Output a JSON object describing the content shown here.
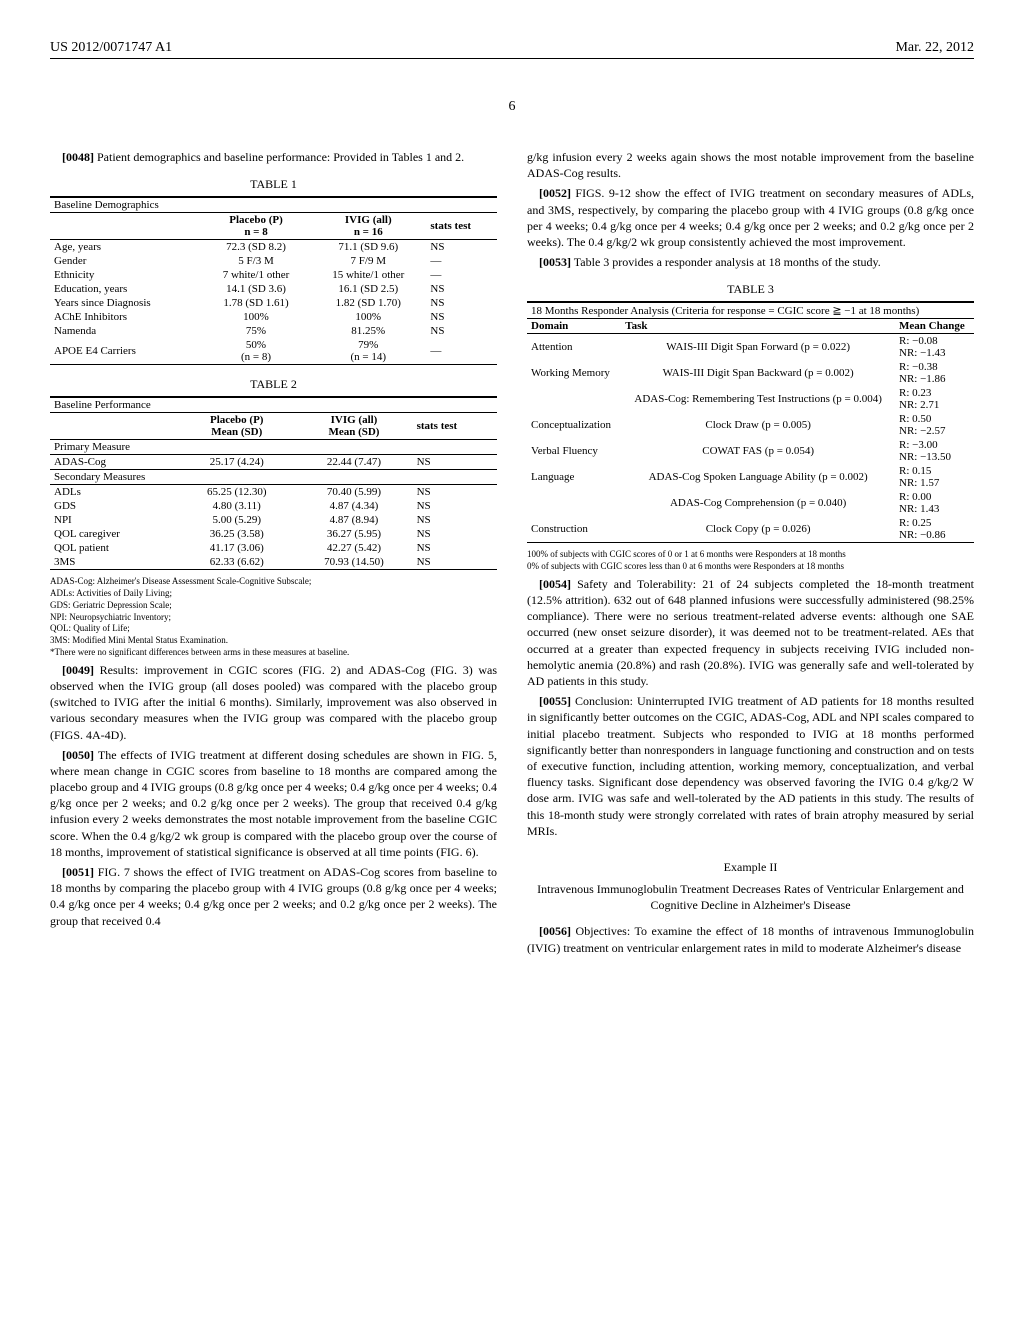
{
  "header": {
    "pub_id": "US 2012/0071747 A1",
    "pub_date": "Mar. 22, 2012",
    "page_number": "6"
  },
  "left": {
    "p48_num": "[0048]",
    "p48": "Patient demographics and baseline performance: Provided in Tables 1 and 2.",
    "table1": {
      "title": "TABLE 1",
      "caption": "Baseline Demographics",
      "col_labels": [
        "",
        "Placebo (P)\nn = 8",
        "IVIG (all)\nn = 16",
        "stats test"
      ],
      "rows": [
        [
          "Age, years",
          "72.3 (SD 8.2)",
          "71.1 (SD 9.6)",
          "NS"
        ],
        [
          "Gender",
          "5 F/3 M",
          "7 F/9 M",
          "—"
        ],
        [
          "Ethnicity",
          "7 white/1 other",
          "15 white/1 other",
          "—"
        ],
        [
          "Education, years",
          "14.1 (SD 3.6)",
          "16.1 (SD 2.5)",
          "NS"
        ],
        [
          "Years since Diagnosis",
          "1.78 (SD 1.61)",
          "1.82 (SD 1.70)",
          "NS"
        ],
        [
          "AChE Inhibitors",
          "100%",
          "100%",
          "NS"
        ],
        [
          "Namenda",
          "75%",
          "81.25%",
          "NS"
        ],
        [
          "APOE E4 Carriers",
          "50%\n(n = 8)",
          "79%\n(n = 14)",
          "—"
        ]
      ]
    },
    "table2": {
      "title": "TABLE 2",
      "caption": "Baseline Performance",
      "col_labels": [
        "",
        "Placebo (P)\nMean (SD)",
        "IVIG (all)\nMean (SD)",
        "stats test"
      ],
      "primary_label": "Primary Measure",
      "primary_rows": [
        [
          "ADAS-Cog",
          "25.17 (4.24)",
          "22.44 (7.47)",
          "NS"
        ]
      ],
      "secondary_label": "Secondary Measures",
      "secondary_rows": [
        [
          "ADLs",
          "65.25 (12.30)",
          "70.40 (5.99)",
          "NS"
        ],
        [
          "GDS",
          "4.80 (3.11)",
          "4.87 (4.34)",
          "NS"
        ],
        [
          "NPI",
          "5.00 (5.29)",
          "4.87 (8.94)",
          "NS"
        ],
        [
          "QOL caregiver",
          "36.25 (3.58)",
          "36.27 (5.95)",
          "NS"
        ],
        [
          "QOL patient",
          "41.17 (3.06)",
          "42.27 (5.42)",
          "NS"
        ],
        [
          "3MS",
          "62.33 (6.62)",
          "70.93 (14.50)",
          "NS"
        ]
      ],
      "footnotes": [
        "ADAS-Cog: Alzheimer's Disease Assessment Scale-Cognitive Subscale;",
        "ADLs: Activities of Daily Living;",
        "GDS: Geriatric Depression Scale;",
        "NPI: Neuropsychiatric Inventory;",
        "QOL: Quality of Life;",
        "3MS: Modified Mini Mental Status Examination.",
        "*There were no significant differences between arms in these measures at baseline."
      ]
    },
    "p49_num": "[0049]",
    "p49": "Results: improvement in CGIC scores (FIG. 2) and ADAS-Cog (FIG. 3) was observed when the IVIG group (all doses pooled) was compared with the placebo group (switched to IVIG after the initial 6 months). Similarly, improvement was also observed in various secondary measures when the IVIG group was compared with the placebo group (FIGS. 4A-4D).",
    "p50_num": "[0050]",
    "p50": "The effects of IVIG treatment at different dosing schedules are shown in FIG. 5, where mean change in CGIC scores from baseline to 18 months are compared among the placebo group and 4 IVIG groups (0.8 g/kg once per 4 weeks; 0.4 g/kg once per 4 weeks; 0.4 g/kg once per 2 weeks; and 0.2 g/kg once per 2 weeks). The group that received 0.4 g/kg infusion every 2 weeks demonstrates the most notable improvement from the baseline CGIC score. When the 0.4 g/kg/2 wk group is compared with the placebo group over the course of 18 months, improvement of statistical significance is observed at all time points (FIG. 6).",
    "p51_num": "[0051]",
    "p51": "FIG. 7 shows the effect of IVIG treatment on ADAS-Cog scores from baseline to 18 months by comparing the placebo group with 4 IVIG groups (0.8 g/kg once per 4 weeks; 0.4 g/kg once per 4 weeks; 0.4 g/kg once per 2 weeks; and 0.2 g/kg once per 2 weeks). The group that received 0.4"
  },
  "right": {
    "p51c": "g/kg infusion every 2 weeks again shows the most notable improvement from the baseline ADAS-Cog results.",
    "p52_num": "[0052]",
    "p52": "FIGS. 9-12 show the effect of IVIG treatment on secondary measures of ADLs, and 3MS, respectively, by comparing the placebo group with 4 IVIG groups (0.8 g/kg once per 4 weeks; 0.4 g/kg once per 4 weeks; 0.4 g/kg once per 2 weeks; and 0.2 g/kg once per 2 weeks). The 0.4 g/kg/2 wk group consistently achieved the most improvement.",
    "p53_num": "[0053]",
    "p53": "Table 3 provides a responder analysis at 18 months of the study.",
    "table3": {
      "title": "TABLE 3",
      "caption": "18 Months Responder Analysis (Criteria for response = CGIC score ≧ −1 at 18 months)",
      "col_labels": [
        "Domain",
        "Task",
        "Mean Change"
      ],
      "rows": [
        [
          "Attention",
          "WAIS-III Digit Span Forward (p = 0.022)",
          "R: −0.08\nNR: −1.43"
        ],
        [
          "Working Memory",
          "WAIS-III Digit Span Backward (p = 0.002)",
          "R: −0.38\nNR: −1.86"
        ],
        [
          "",
          "ADAS-Cog: Remembering Test Instructions (p = 0.004)",
          "R: 0.23\nNR: 2.71"
        ],
        [
          "Conceptualization",
          "Clock Draw (p = 0.005)",
          "R: 0.50\nNR: −2.57"
        ],
        [
          "Verbal Fluency",
          "COWAT FAS (p = 0.054)",
          "R: −3.00\nNR: −13.50"
        ],
        [
          "Language",
          "ADAS-Cog Spoken Language Ability (p = 0.002)",
          "R: 0.15\nNR: 1.57"
        ],
        [
          "",
          "ADAS-Cog Comprehension (p = 0.040)",
          "R: 0.00\nNR: 1.43"
        ],
        [
          "Construction",
          "Clock Copy (p = 0.026)",
          "R: 0.25\nNR: −0.86"
        ]
      ],
      "footnotes": [
        "100% of subjects with CGIC scores of 0 or 1 at 6 months were Responders at 18 months",
        "0% of subjects with CGIC scores less than 0 at 6 months were Responders at 18 months"
      ]
    },
    "p54_num": "[0054]",
    "p54": "Safety and Tolerability: 21 of 24 subjects completed the 18-month treatment (12.5% attrition). 632 out of 648 planned infusions were successfully administered (98.25% compliance). There were no serious treatment-related adverse events: although one SAE occurred (new onset seizure disorder), it was deemed not to be treatment-related. AEs that occurred at a greater than expected frequency in subjects receiving IVIG included non-hemolytic anemia (20.8%) and rash (20.8%). IVIG was generally safe and well-tolerated by AD patients in this study.",
    "p55_num": "[0055]",
    "p55": "Conclusion: Uninterrupted IVIG treatment of AD patients for 18 months resulted in significantly better outcomes on the CGIC, ADAS-Cog, ADL and NPI scales compared to initial placebo treatment. Subjects who responded to IVIG at 18 months performed significantly better than nonresponders in language functioning and construction and on tests of executive function, including attention, working memory, conceptualization, and verbal fluency tasks. Significant dose dependency was observed favoring the IVIG 0.4 g/kg/2 W dose arm. IVIG was safe and well-tolerated by the AD patients in this study. The results of this 18-month study were strongly correlated with rates of brain atrophy measured by serial MRIs.",
    "example2_title": "Example II",
    "example2_sub": "Intravenous Immunoglobulin Treatment Decreases Rates of Ventricular Enlargement and Cognitive Decline in Alzheimer's Disease",
    "p56_num": "[0056]",
    "p56": "Objectives: To examine the effect of 18 months of intravenous Immunoglobulin (IVIG) treatment on ventricular enlargement rates in mild to moderate Alzheimer's disease"
  }
}
